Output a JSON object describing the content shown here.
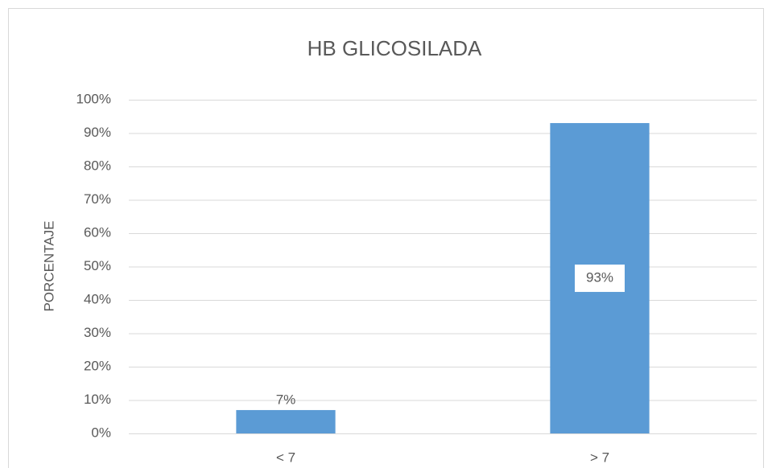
{
  "chart_data": {
    "type": "bar",
    "title": "HB GLICOSILADA",
    "y_label": "PORCENTAJE",
    "categories": [
      "< 7",
      "> 7"
    ],
    "values": [
      7,
      93
    ],
    "value_labels": [
      "7%",
      "93%"
    ],
    "color": "#5b9bd5",
    "ylim": [
      0,
      100
    ],
    "yticks": [
      {
        "value": 0,
        "label": "0%"
      },
      {
        "value": 10,
        "label": "10%"
      },
      {
        "value": 20,
        "label": "20%"
      },
      {
        "value": 30,
        "label": "30%"
      },
      {
        "value": 40,
        "label": "40%"
      },
      {
        "value": 50,
        "label": "50%"
      },
      {
        "value": 60,
        "label": "60%"
      },
      {
        "value": 70,
        "label": "70%"
      },
      {
        "value": 80,
        "label": "80%"
      },
      {
        "value": 90,
        "label": "90%"
      },
      {
        "value": 100,
        "label": "100%"
      }
    ],
    "grid": true
  }
}
